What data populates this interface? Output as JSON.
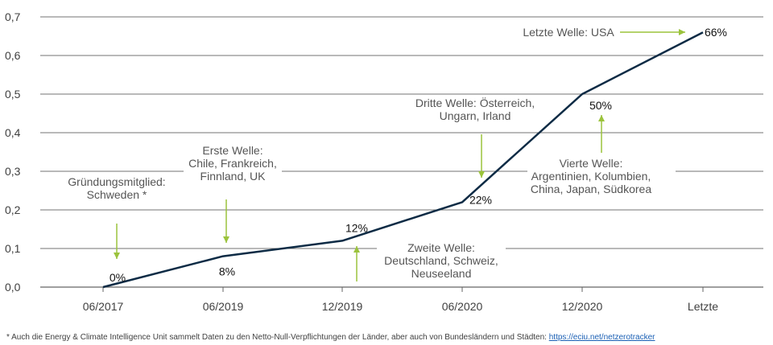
{
  "chart_data": {
    "type": "line",
    "categories": [
      "06/2017",
      "06/2019",
      "12/2019",
      "06/2020",
      "12/2020",
      "Letzte"
    ],
    "values": [
      0.0,
      0.08,
      0.12,
      0.22,
      0.5,
      0.66
    ],
    "data_labels": [
      "0%",
      "8%",
      "12%",
      "22%",
      "50%",
      "66%"
    ],
    "yticks": [
      "0,0",
      "0,1",
      "0,2",
      "0,3",
      "0,4",
      "0,5",
      "0,6",
      "0,7"
    ],
    "ylim": [
      0,
      0.7
    ],
    "grid": true,
    "colors": {
      "line": "#0d2b45",
      "arrow": "#9bc33c",
      "grid": "#444444"
    },
    "annotations": [
      {
        "lines": [
          "Gründungsmitglied:",
          "Schweden *"
        ],
        "point": 0,
        "arrow": "down"
      },
      {
        "lines": [
          "Erste Welle:",
          "Chile, Frankreich,",
          "Finnland, UK"
        ],
        "point": 1,
        "arrow": "down"
      },
      {
        "lines": [
          "Zweite Welle:",
          "Deutschland, Schweiz,",
          "Neuseeland"
        ],
        "point": 2,
        "arrow": "up"
      },
      {
        "lines": [
          "Dritte Welle: Österreich,",
          "Ungarn, Irland"
        ],
        "point": 3,
        "arrow": "down"
      },
      {
        "lines": [
          "Vierte Welle:",
          "Argentinien, Kolumbien,",
          "China, Japan, Südkorea"
        ],
        "point": 4,
        "arrow": "up"
      },
      {
        "lines": [
          "Letzte Welle: USA"
        ],
        "point": 5,
        "arrow": "right"
      }
    ]
  },
  "footnote": {
    "text": "* Auch die Energy & Climate Intelligence Unit sammelt Daten zu den Netto-Null-Verpflichtungen der Länder, aber auch von Bundesländern und Städten: ",
    "link": "https://eciu.net/netzerotracker"
  }
}
